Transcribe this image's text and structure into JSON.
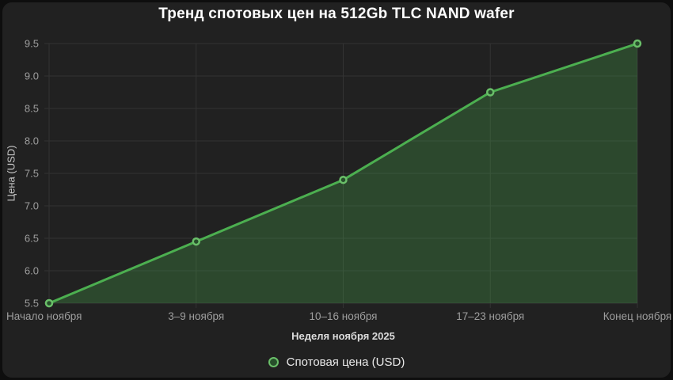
{
  "title": "Тренд спотовых цен на 512Gb TLC NAND wafer",
  "colors": {
    "background": "#0e0e0e",
    "card": "#212121",
    "line": "#4caf50",
    "area_fill": "rgba(76, 175, 80, 0.28)",
    "grid": "#333333",
    "tick_text": "#9e9e9e",
    "title_text": "#ffffff",
    "axis_title_text": "#dcdcdc",
    "legend_text": "#eaeaea",
    "marker_fill": "#274f2b",
    "marker_stroke": "#6abf69"
  },
  "chart_data": {
    "type": "line",
    "title": "Тренд спотовых цен на 512Gb TLC NAND wafer",
    "x": [
      "Начало ноября",
      "3–9 ноября",
      "10–16 ноября",
      "17–23 ноября",
      "Конец ноября"
    ],
    "series": [
      {
        "name": "Спотовая цена (USD)",
        "values": [
          5.5,
          6.45,
          7.4,
          8.75,
          9.5
        ]
      }
    ],
    "xlabel": "Неделя ноября 2025",
    "ylabel": "Цена (USD)",
    "ylim": [
      5.5,
      9.5
    ],
    "yticks": [
      "5.5",
      "6.0",
      "6.5",
      "7.0",
      "7.5",
      "8.0",
      "8.5",
      "9.0",
      "9.5"
    ],
    "grid": true,
    "area_fill": true,
    "legend": {
      "position": "bottom",
      "label": "Спотовая цена (USD)"
    }
  }
}
